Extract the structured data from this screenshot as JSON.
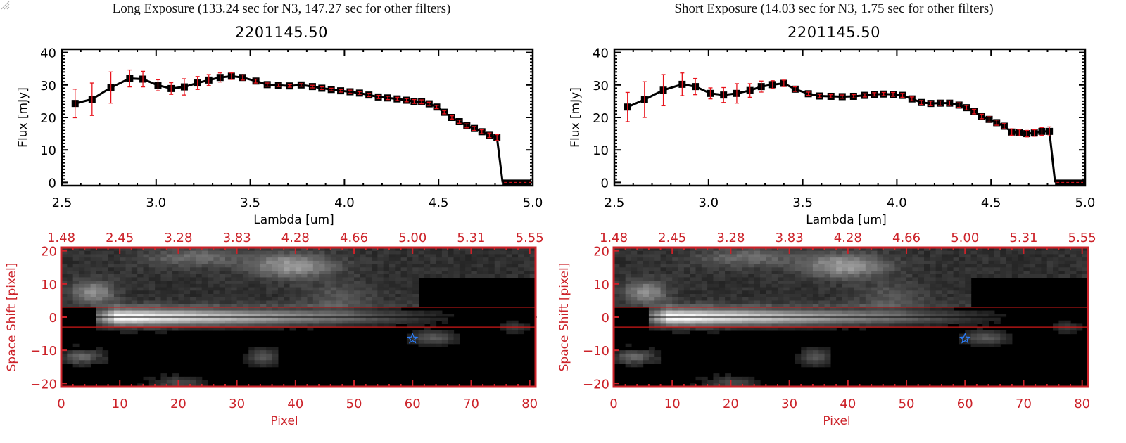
{
  "chart_data": [
    {
      "type": "line",
      "panel": "left",
      "title": "Long Exposure (133.24 sec for N3, 147.27 sec for other filters)",
      "subtitle": "2201145.50",
      "xlabel": "Lambda [um]",
      "ylabel": "Flux [mJy]",
      "xlim": [
        2.5,
        5.0
      ],
      "ylim": [
        -1,
        41
      ],
      "xticks": [
        "2.5",
        "3.0",
        "3.5",
        "4.0",
        "4.5",
        "5.0"
      ],
      "xtick_values": [
        2.5,
        3.0,
        3.5,
        4.0,
        4.5,
        5.0
      ],
      "yticks": [
        "0",
        "10",
        "20",
        "30",
        "40"
      ],
      "ytick_values": [
        0,
        10,
        20,
        30,
        40
      ],
      "series": [
        {
          "name": "flux",
          "x": [
            2.57,
            2.66,
            2.76,
            2.86,
            2.93,
            3.01,
            3.08,
            3.15,
            3.22,
            3.28,
            3.34,
            3.4,
            3.46,
            3.53,
            3.59,
            3.65,
            3.71,
            3.77,
            3.83,
            3.88,
            3.93,
            3.98,
            4.03,
            4.08,
            4.13,
            4.18,
            4.23,
            4.28,
            4.33,
            4.37,
            4.41,
            4.45,
            4.49,
            4.53,
            4.57,
            4.61,
            4.65,
            4.69,
            4.73,
            4.77,
            4.81
          ],
          "y": [
            24.3,
            25.6,
            29.2,
            32.0,
            31.8,
            29.9,
            28.9,
            29.4,
            30.6,
            31.5,
            32.3,
            32.7,
            32.3,
            31.2,
            30.1,
            29.9,
            29.7,
            30.0,
            29.5,
            29.0,
            28.6,
            28.2,
            27.9,
            27.5,
            26.9,
            26.3,
            26.0,
            25.7,
            25.3,
            24.9,
            24.8,
            24.2,
            23.2,
            21.6,
            20.0,
            18.7,
            17.4,
            16.6,
            15.6,
            14.5,
            13.8
          ],
          "err": [
            4.4,
            5.0,
            4.8,
            2.6,
            2.4,
            1.7,
            1.8,
            2.5,
            2.0,
            1.7,
            1.4,
            1.0,
            0.8,
            0.6,
            0.5,
            0.4,
            0.4,
            0.4,
            0.4,
            0.4,
            0.4,
            0.4,
            0.5,
            0.4,
            0.5,
            0.5,
            0.5,
            0.5,
            0.5,
            0.6,
            0.6,
            0.5,
            0.5,
            0.5,
            0.5,
            0.5,
            0.6,
            0.6,
            0.6,
            0.7,
            0.9
          ]
        }
      ],
      "tail": {
        "x": [
          4.81,
          4.84,
          5.0
        ],
        "y": [
          13.8,
          0,
          0
        ]
      },
      "image": {
        "top_axis_labels": [
          "1.48",
          "2.45",
          "3.28",
          "3.83",
          "4.28",
          "4.66",
          "5.00",
          "5.31",
          "5.55"
        ],
        "xlabel": "Pixel",
        "ylabel": "Space Shift [pixel]",
        "xticks": [
          "0",
          "10",
          "20",
          "30",
          "40",
          "50",
          "60",
          "70",
          "80"
        ],
        "xtick_values": [
          0,
          10,
          20,
          30,
          40,
          50,
          60,
          70,
          80
        ],
        "yticks": [
          "20",
          "10",
          "0",
          "−10",
          "−20"
        ],
        "ytick_values": [
          20,
          10,
          0,
          -10,
          -20
        ],
        "xlim": [
          0,
          81
        ],
        "ylim": [
          -21,
          21
        ],
        "aperture": [
          -3,
          3
        ],
        "star_marker": {
          "x": 60,
          "y": -6.5
        }
      }
    },
    {
      "type": "line",
      "panel": "right",
      "title": "Short Exposure (14.03 sec for N3, 1.75 sec for other filters)",
      "subtitle": "2201145.50",
      "xlabel": "Lambda [um]",
      "ylabel": "Flux [mJy]",
      "xlim": [
        2.5,
        5.0
      ],
      "ylim": [
        -1,
        41
      ],
      "xticks": [
        "2.5",
        "3.0",
        "3.5",
        "4.0",
        "4.5",
        "5.0"
      ],
      "xtick_values": [
        2.5,
        3.0,
        3.5,
        4.0,
        4.5,
        5.0
      ],
      "yticks": [
        "0",
        "10",
        "20",
        "30",
        "40"
      ],
      "ytick_values": [
        0,
        10,
        20,
        30,
        40
      ],
      "series": [
        {
          "name": "flux",
          "x": [
            2.57,
            2.66,
            2.76,
            2.86,
            2.93,
            3.01,
            3.08,
            3.15,
            3.22,
            3.28,
            3.34,
            3.4,
            3.46,
            3.53,
            3.59,
            3.65,
            3.71,
            3.77,
            3.83,
            3.88,
            3.93,
            3.98,
            4.03,
            4.08,
            4.13,
            4.18,
            4.23,
            4.28,
            4.33,
            4.37,
            4.41,
            4.45,
            4.49,
            4.53,
            4.57,
            4.61,
            4.65,
            4.69,
            4.73,
            4.77,
            4.81
          ],
          "y": [
            23.2,
            25.5,
            28.4,
            30.2,
            29.5,
            27.4,
            26.9,
            27.4,
            28.3,
            29.5,
            30.1,
            30.5,
            28.7,
            27.3,
            26.6,
            26.5,
            26.4,
            26.5,
            26.8,
            27.1,
            27.2,
            27.1,
            26.8,
            25.7,
            24.6,
            24.3,
            24.4,
            24.4,
            23.8,
            23.0,
            21.8,
            20.3,
            19.4,
            18.4,
            17.3,
            15.5,
            15.3,
            15.0,
            15.2,
            15.7,
            15.7
          ],
          "err": [
            4.5,
            5.5,
            4.8,
            3.5,
            2.5,
            1.7,
            2.3,
            3.0,
            2.1,
            1.7,
            1.2,
            1.0,
            0.7,
            0.5,
            0.5,
            0.5,
            0.5,
            0.5,
            0.5,
            0.5,
            0.5,
            0.6,
            0.6,
            0.6,
            0.6,
            0.7,
            0.7,
            0.7,
            0.7,
            0.7,
            0.7,
            0.7,
            0.8,
            0.8,
            0.8,
            1.0,
            1.0,
            1.0,
            1.0,
            1.2,
            1.4
          ]
        }
      ],
      "tail": {
        "x": [
          4.81,
          4.84,
          5.0
        ],
        "y": [
          15.7,
          0,
          0
        ]
      },
      "image": {
        "top_axis_labels": [
          "1.48",
          "2.45",
          "3.28",
          "3.83",
          "4.28",
          "4.66",
          "5.00",
          "5.31",
          "5.55"
        ],
        "xlabel": "Pixel",
        "ylabel": "Space Shift [pixel]",
        "xticks": [
          "0",
          "10",
          "20",
          "30",
          "40",
          "50",
          "60",
          "70",
          "80"
        ],
        "xtick_values": [
          0,
          10,
          20,
          30,
          40,
          50,
          60,
          70,
          80
        ],
        "yticks": [
          "20",
          "10",
          "0",
          "−10",
          "−20"
        ],
        "ytick_values": [
          20,
          10,
          0,
          -10,
          -20
        ],
        "xlim": [
          0,
          81
        ],
        "ylim": [
          -21,
          21
        ],
        "aperture": [
          -3,
          3
        ],
        "star_marker": {
          "x": 60,
          "y": -6.5
        }
      }
    }
  ],
  "colors": {
    "line": "#000000",
    "errorbar": "#e8141c",
    "image_axes": "#cc2229",
    "aperture": "#d01818",
    "star": "#2a7fff"
  }
}
